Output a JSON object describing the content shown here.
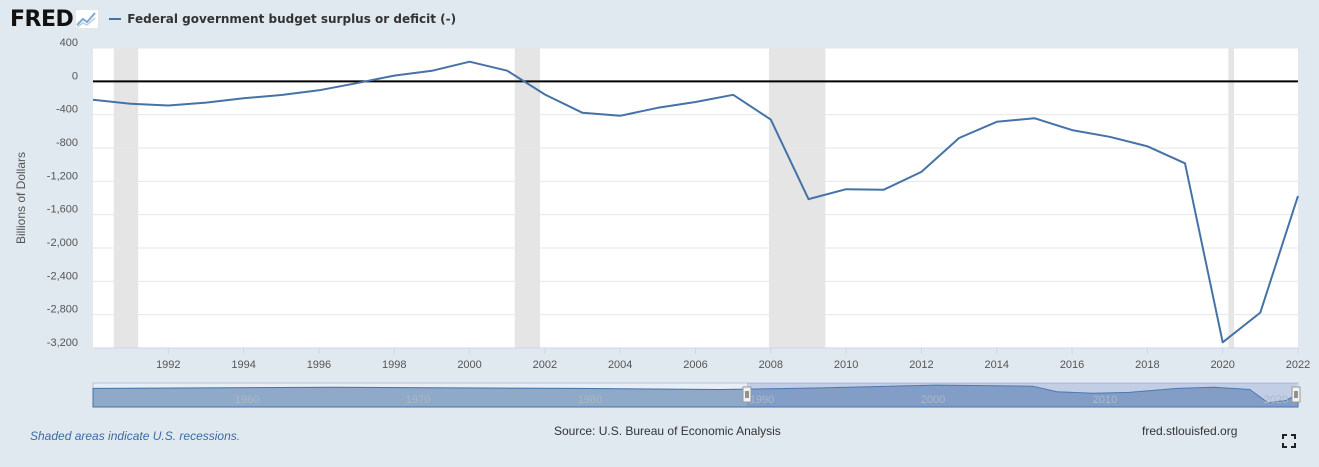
{
  "header": {
    "logo_text": "FRED",
    "logo_icon": "fred-chart-icon",
    "legend_label": "Federal government budget surplus or deficit (-)"
  },
  "colors": {
    "series": "#4572a7",
    "recession": "#e5e5e5",
    "zero_line": "#000000",
    "background": "#e1e9f0",
    "plot_background": "#ffffff"
  },
  "chart_data": {
    "type": "line",
    "title": "",
    "xlabel": "",
    "ylabel": "Billions of Dollars",
    "xlim": [
      1990.0,
      2022.0
    ],
    "ylim": [
      -3200,
      400
    ],
    "yticks": [
      400,
      0,
      -400,
      -800,
      -1200,
      -1600,
      -2000,
      -2400,
      -2800,
      -3200
    ],
    "ytick_labels": [
      "400",
      "0",
      "-400",
      "-800",
      "-1,200",
      "-1,600",
      "-2,000",
      "-2,400",
      "-2,800",
      "-3,200"
    ],
    "xticks": [
      1992,
      1994,
      1996,
      1998,
      2000,
      2002,
      2004,
      2006,
      2008,
      2010,
      2012,
      2014,
      2016,
      2018,
      2020,
      2022
    ],
    "grid": true,
    "recessions": [
      [
        1990.55,
        1991.2
      ],
      [
        2001.2,
        2001.87
      ],
      [
        2007.95,
        2009.45
      ],
      [
        2020.15,
        2020.3
      ]
    ],
    "series": [
      {
        "name": "Federal government budget surplus or deficit (-)",
        "x": [
          1990,
          1991,
          1992,
          1993,
          1994,
          1995,
          1996,
          1997,
          1998,
          1999,
          2000,
          2001,
          2002,
          2003,
          2004,
          2005,
          2006,
          2007,
          2008,
          2009,
          2010,
          2011,
          2012,
          2013,
          2014,
          2015,
          2016,
          2017,
          2018,
          2019,
          2020,
          2021,
          2022
        ],
        "y": [
          -221,
          -269,
          -290,
          -255,
          -203,
          -164,
          -107,
          -22,
          69,
          126,
          236,
          128,
          -158,
          -378,
          -413,
          -318,
          -248,
          -161,
          -459,
          -1413,
          -1294,
          -1300,
          -1087,
          -680,
          -485,
          -442,
          -585,
          -665,
          -779,
          -984,
          -3132,
          -2775,
          -1375
        ]
      }
    ],
    "legend": "top-left",
    "notes": "Shaded areas indicate U.S. recessions."
  },
  "navigator": {
    "labels": [
      "1960",
      "1970",
      "1980",
      "1990",
      "2000",
      "2010",
      "2020"
    ]
  },
  "footer": {
    "recession_note": "Shaded areas indicate U.S. recessions.",
    "source": "Source: U.S. Bureau of Economic Analysis",
    "site": "fred.stlouisfed.org",
    "fullscreen_icon": "fullscreen-icon"
  }
}
